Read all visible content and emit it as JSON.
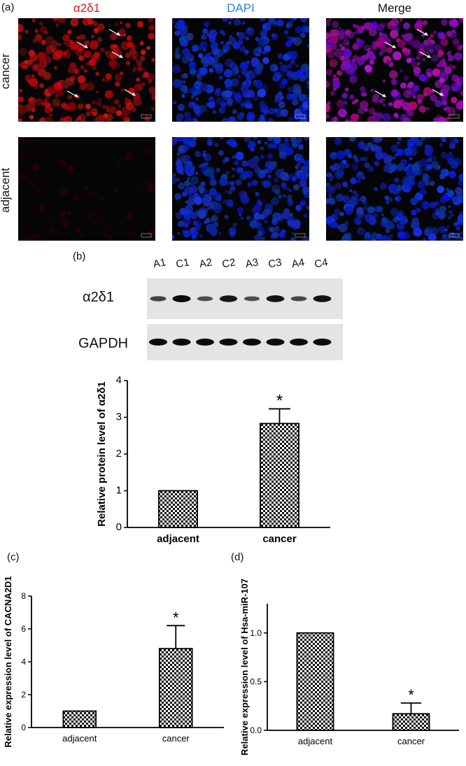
{
  "panel_a": {
    "letter": "(a)",
    "channels": [
      "α2δ1",
      "DAPI",
      "Merge"
    ],
    "channel_colors": [
      "#e0141e",
      "#2a7fe0",
      "#111111"
    ],
    "rows": [
      "cancer",
      "adjacent"
    ]
  },
  "panel_b": {
    "letter": "(b)",
    "lanes": [
      "A1",
      "C1",
      "A2",
      "C2",
      "A3",
      "C3",
      "A4",
      "C4"
    ],
    "blots": [
      {
        "label": "α2δ1",
        "band_intensity": [
          0.55,
          1.0,
          0.45,
          0.9,
          0.45,
          0.95,
          0.5,
          0.95
        ]
      },
      {
        "label": "GAPDH",
        "band_intensity": [
          1,
          1,
          1,
          1,
          1,
          1,
          1,
          1
        ]
      }
    ]
  },
  "panel_c": {
    "letter": "(c)"
  },
  "panel_d": {
    "letter": "(d)"
  },
  "chart_data": [
    {
      "id": "b",
      "type": "bar",
      "categories": [
        "adjacent",
        "cancer"
      ],
      "values": [
        1.0,
        2.83
      ],
      "errors": [
        0,
        0.4
      ],
      "ylabel": "Relative protein level of α2δ1",
      "ylim": [
        0,
        4
      ],
      "yticks": [
        "0",
        "1",
        "2",
        "3",
        "4"
      ],
      "annotations": [
        "",
        "*"
      ]
    },
    {
      "id": "c",
      "type": "bar",
      "categories": [
        "adjacent",
        "cancer"
      ],
      "values": [
        1.0,
        4.8
      ],
      "errors": [
        0,
        1.4
      ],
      "ylabel": "Relative expression level of CACNA2D1",
      "ylim": [
        0,
        8
      ],
      "yticks": [
        "0",
        "2",
        "4",
        "6",
        "8"
      ],
      "annotations": [
        "",
        "*"
      ]
    },
    {
      "id": "d",
      "type": "bar",
      "categories": [
        "adjacent",
        "cancer"
      ],
      "values": [
        1.0,
        0.17
      ],
      "errors": [
        0,
        0.11
      ],
      "ylabel": "Relative expression level of Hsa-miR-107",
      "ylim": [
        0,
        1.3
      ],
      "yticks": [
        "0.0",
        "0.5",
        "1.0"
      ],
      "annotations": [
        "",
        "*"
      ]
    }
  ]
}
